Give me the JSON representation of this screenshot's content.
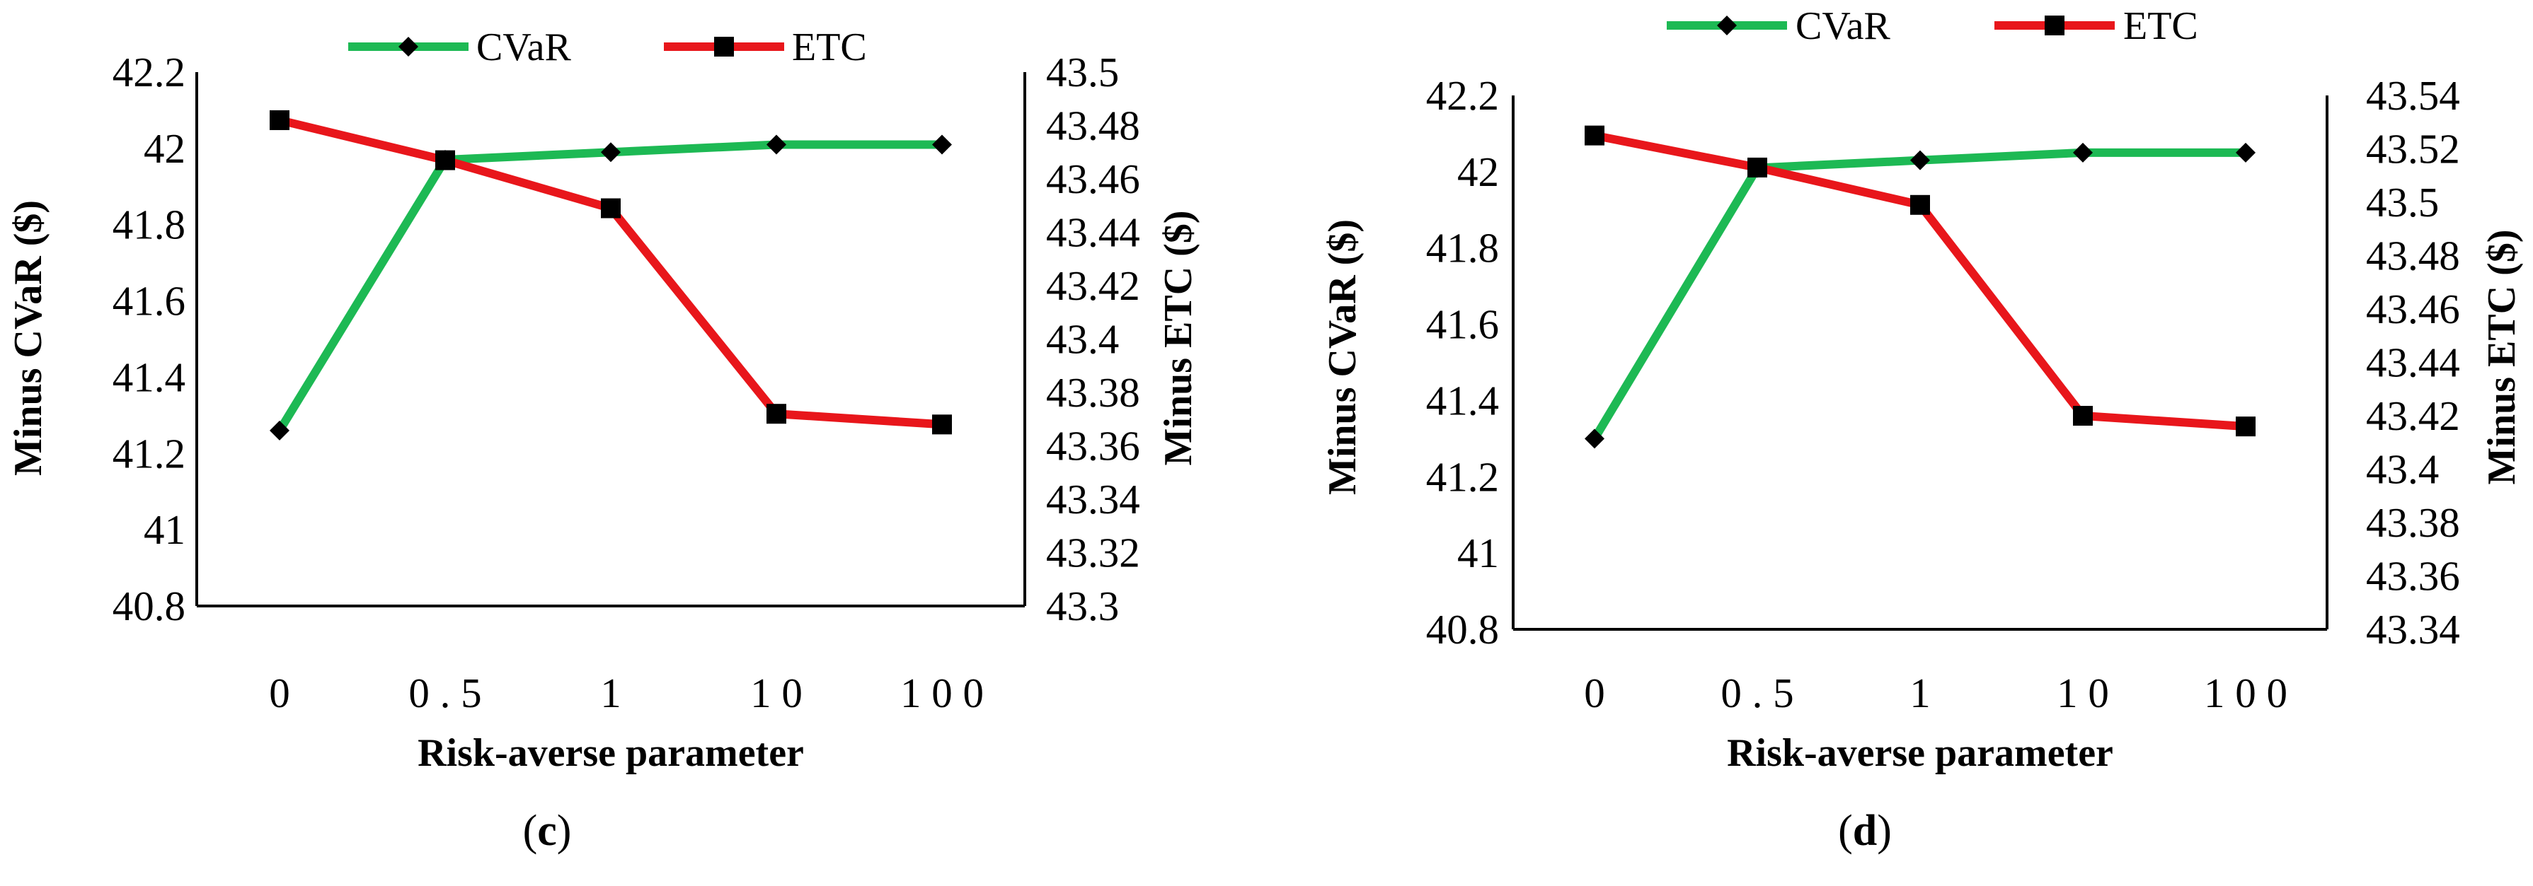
{
  "chart_data": [
    {
      "type": "line",
      "panel_label": "(c)",
      "caption_open": "(",
      "caption_letter": "c",
      "caption_close": ")",
      "categories": [
        "0",
        "0.5",
        "1",
        "10",
        "100"
      ],
      "category_tick_labels": [
        "0",
        "0 . 5",
        "1",
        "1 0",
        "1 0 0"
      ],
      "xlabel": "Risk-averse parameter",
      "ylabel_left": "Minus CVaR ($)",
      "ylabel_right": "Minus ETC ($)",
      "ylim_left": [
        40.8,
        42.2
      ],
      "yticks_left": [
        "40.8",
        "41",
        "41.2",
        "41.4",
        "41.6",
        "41.8",
        "42",
        "42.2"
      ],
      "ylim_right": [
        43.3,
        43.5
      ],
      "yticks_right": [
        "43.3",
        "43.32",
        "43.34",
        "43.36",
        "43.38",
        "43.4",
        "43.42",
        "43.44",
        "43.46",
        "43.48",
        "43.5"
      ],
      "grid": false,
      "legend_position": "top",
      "series": [
        {
          "name": "CVaR",
          "axis": "left",
          "color": "#1db954",
          "marker": "diamond",
          "values": [
            41.26,
            41.97,
            41.99,
            42.01,
            42.01
          ]
        },
        {
          "name": "ETC",
          "axis": "right",
          "color": "#e8161b",
          "marker": "square",
          "values": [
            43.482,
            43.467,
            43.449,
            43.372,
            43.368
          ]
        }
      ]
    },
    {
      "type": "line",
      "panel_label": "(d)",
      "caption_open": "(",
      "caption_letter": "d",
      "caption_close": ")",
      "categories": [
        "0",
        "0.5",
        "1",
        "10",
        "100"
      ],
      "category_tick_labels": [
        "0",
        "0 . 5",
        "1",
        "1 0",
        "1 0 0"
      ],
      "xlabel": "Risk-averse parameter",
      "ylabel_left": "Minus CVaR ($)",
      "ylabel_right": "Minus ETC ($)",
      "ylim_left": [
        40.8,
        42.2
      ],
      "yticks_left": [
        "40.8",
        "41",
        "41.2",
        "41.4",
        "41.6",
        "41.8",
        "42",
        "42.2"
      ],
      "ylim_right": [
        43.34,
        43.54
      ],
      "yticks_right": [
        "43.34",
        "43.36",
        "43.38",
        "43.4",
        "43.42",
        "43.44",
        "43.46",
        "43.48",
        "43.5",
        "43.52",
        "43.54"
      ],
      "grid": false,
      "legend_position": "top",
      "series": [
        {
          "name": "CVaR",
          "axis": "left",
          "color": "#1db954",
          "marker": "diamond",
          "values": [
            41.3,
            42.01,
            42.03,
            42.05,
            42.05
          ]
        },
        {
          "name": "ETC",
          "axis": "right",
          "color": "#e8161b",
          "marker": "square",
          "values": [
            43.525,
            43.513,
            43.499,
            43.42,
            43.416
          ]
        }
      ]
    }
  ]
}
